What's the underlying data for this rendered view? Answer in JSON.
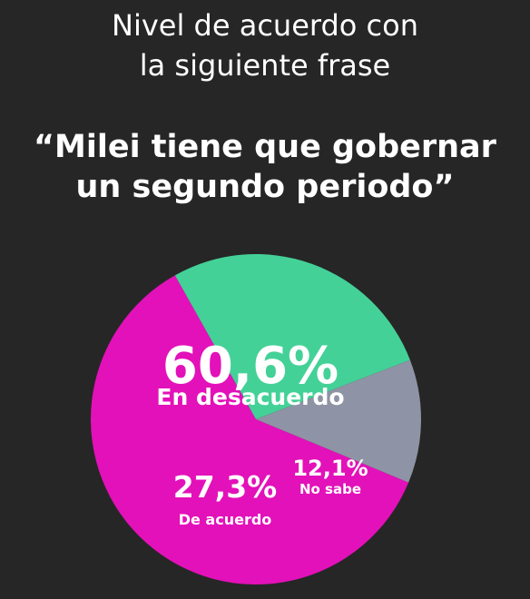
{
  "header": {
    "title_line1": "Nivel de acuerdo con",
    "title_line2": "la siguiente frase",
    "quote_line1": "“Milei tiene que gobernar",
    "quote_line2": "un segundo periodo”"
  },
  "chart_data": {
    "type": "pie",
    "slices": [
      {
        "label": "En desacuerdo",
        "value": 60.6,
        "value_label": "60,6%",
        "color": "#e311b9"
      },
      {
        "label": "De acuerdo",
        "value": 27.3,
        "value_label": "27,3%",
        "color": "#44d197"
      },
      {
        "label": "No sabe",
        "value": 12.1,
        "value_label": "12,1%",
        "color": "#8e93a5"
      }
    ]
  }
}
